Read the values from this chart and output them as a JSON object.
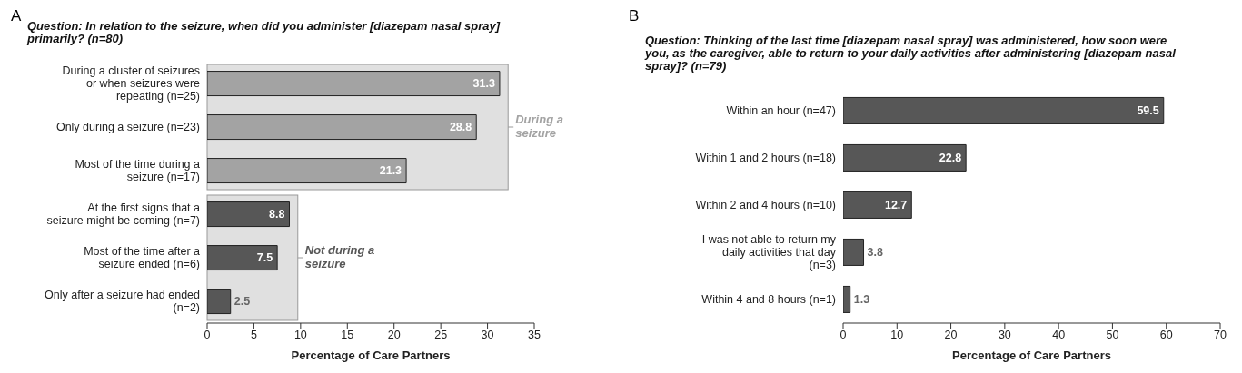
{
  "chart_data": [
    {
      "type": "bar",
      "orientation": "horizontal",
      "title": "Question: In relation to the seizure, when did you administer [diazepam nasal spray] primarily? (n=80)",
      "xlabel": "Percentage of Care Partners",
      "categories": [
        "During a cluster of seizures or when seizures were repeating (n=25)",
        "Only during a seizure (n=23)",
        "Most of the time during a seizure (n=17)",
        "At the first signs that a seizure might be coming (n=7)",
        "Most of the time after a seizure ended (n=6)",
        "Only after a seizure had ended (n=2)"
      ],
      "values": [
        31.3,
        28.8,
        21.3,
        8.8,
        7.5,
        2.5
      ],
      "colors": [
        "#a3a3a3",
        "#a3a3a3",
        "#a3a3a3",
        "#575757",
        "#575757",
        "#575757"
      ],
      "xlim": [
        0,
        35
      ],
      "xticks": [
        0,
        5,
        10,
        15,
        20,
        25,
        30,
        35
      ],
      "data_labels": true,
      "grid": false,
      "legend": false,
      "annotations": [
        "A",
        "During a seizure",
        "Not during a seizure"
      ]
    },
    {
      "type": "bar",
      "orientation": "horizontal",
      "title": "Question: Thinking of the last time [diazepam nasal spray] was administered, how soon were you, as the caregiver, able to return to your daily activities after administering [diazepam nasal spray]? (n=79)",
      "xlabel": "Percentage of Care Partners",
      "categories": [
        "Within an hour (n=47)",
        "Within 1 and 2 hours (n=18)",
        "Within 2 and 4 hours (n=10)",
        "I was not able to return my daily activities that day (n=3)",
        "Within 4 and 8 hours (n=1)"
      ],
      "values": [
        59.5,
        22.8,
        12.7,
        3.8,
        1.3
      ],
      "colors": [
        "#575757",
        "#575757",
        "#575757",
        "#575757",
        "#575757"
      ],
      "xlim": [
        0,
        70
      ],
      "xticks": [
        0,
        10,
        20,
        30,
        40,
        50,
        60,
        70
      ],
      "data_labels": true,
      "grid": false,
      "legend": false,
      "annotations": [
        "B"
      ]
    }
  ]
}
